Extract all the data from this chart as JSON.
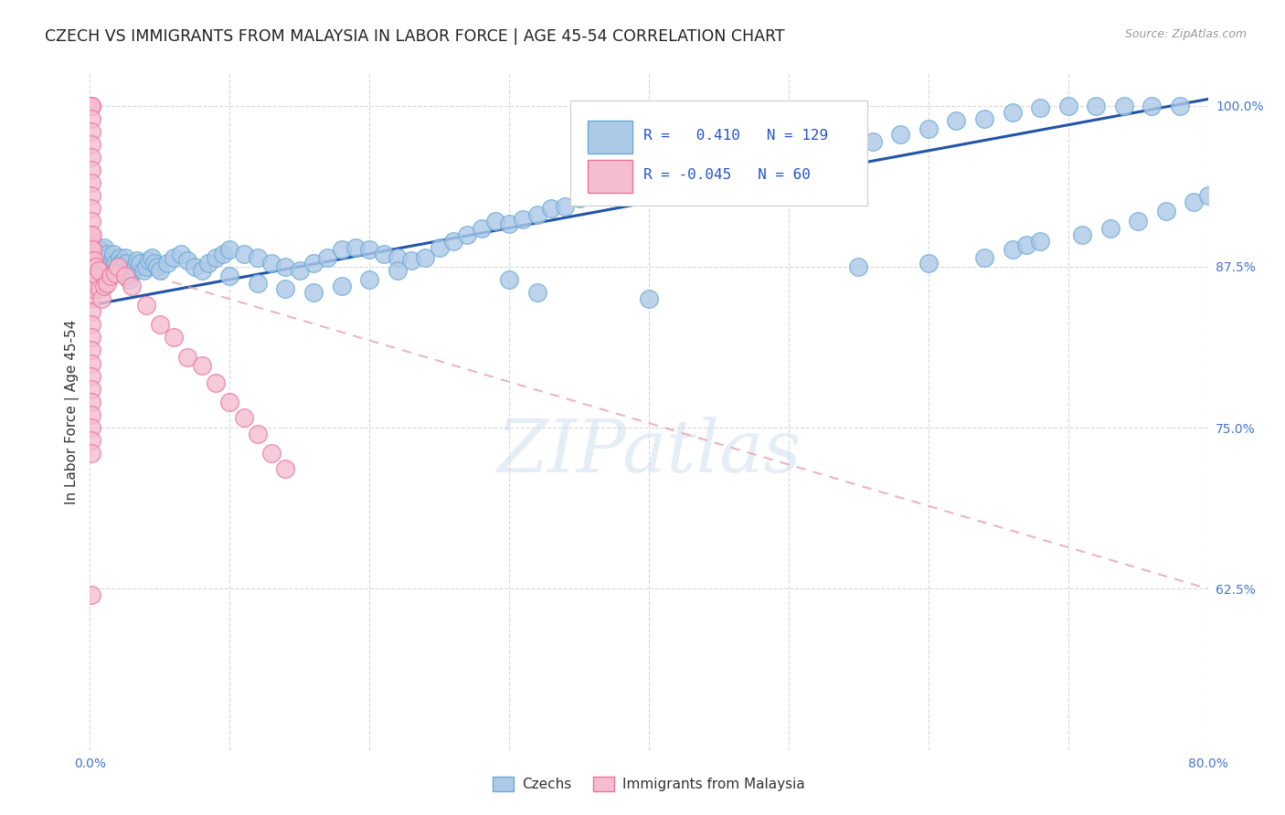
{
  "title": "CZECH VS IMMIGRANTS FROM MALAYSIA IN LABOR FORCE | AGE 45-54 CORRELATION CHART",
  "source": "Source: ZipAtlas.com",
  "ylabel": "In Labor Force | Age 45-54",
  "x_min": 0.0,
  "x_max": 0.8,
  "y_min": 0.5,
  "y_max": 1.025,
  "y_ticks": [
    0.625,
    0.75,
    0.875,
    1.0
  ],
  "y_tick_labels": [
    "62.5%",
    "75.0%",
    "87.5%",
    "100.0%"
  ],
  "x_ticks": [
    0.0,
    0.1,
    0.2,
    0.3,
    0.4,
    0.5,
    0.6,
    0.7,
    0.8
  ],
  "x_tick_labels": [
    "0.0%",
    "",
    "",
    "",
    "",
    "",
    "",
    "",
    "80.0%"
  ],
  "czech_color": "#adc9e8",
  "czech_edge_color": "#6aaad4",
  "malaysia_color": "#f5bdd0",
  "malaysia_edge_color": "#e8759a",
  "trendline_czech_color": "#2255aa",
  "trendline_malaysia_color": "#e89aaa",
  "grid_color": "#d8d8d8",
  "watermark": "ZIPatlas",
  "legend_r_color": "#2255cc",
  "tick_color": "#4477cc",
  "title_color": "#222222",
  "source_color": "#999999",
  "czech_trendline_x": [
    0.0,
    0.8
  ],
  "czech_trendline_y": [
    0.845,
    1.005
  ],
  "malaysia_trendline_x": [
    0.0,
    0.8
  ],
  "malaysia_trendline_y": [
    0.882,
    0.625
  ],
  "czech_x": [
    0.001,
    0.001,
    0.001,
    0.002,
    0.002,
    0.003,
    0.003,
    0.004,
    0.004,
    0.005,
    0.005,
    0.006,
    0.006,
    0.007,
    0.007,
    0.008,
    0.008,
    0.009,
    0.009,
    0.01,
    0.01,
    0.011,
    0.012,
    0.013,
    0.014,
    0.015,
    0.016,
    0.017,
    0.018,
    0.019,
    0.02,
    0.021,
    0.022,
    0.023,
    0.024,
    0.025,
    0.026,
    0.027,
    0.028,
    0.03,
    0.032,
    0.034,
    0.036,
    0.038,
    0.04,
    0.042,
    0.044,
    0.046,
    0.048,
    0.05,
    0.055,
    0.06,
    0.065,
    0.07,
    0.075,
    0.08,
    0.085,
    0.09,
    0.095,
    0.1,
    0.11,
    0.12,
    0.13,
    0.14,
    0.15,
    0.16,
    0.17,
    0.18,
    0.19,
    0.2,
    0.21,
    0.22,
    0.23,
    0.24,
    0.25,
    0.26,
    0.27,
    0.28,
    0.29,
    0.3,
    0.31,
    0.32,
    0.33,
    0.34,
    0.35,
    0.36,
    0.38,
    0.4,
    0.42,
    0.44,
    0.46,
    0.48,
    0.5,
    0.52,
    0.54,
    0.56,
    0.58,
    0.6,
    0.62,
    0.64,
    0.66,
    0.68,
    0.7,
    0.72,
    0.74,
    0.76,
    0.78,
    0.3,
    0.32,
    0.4,
    0.55,
    0.6,
    0.64,
    0.66,
    0.67,
    0.68,
    0.71,
    0.73,
    0.75,
    0.77,
    0.79,
    0.8,
    0.1,
    0.12,
    0.14,
    0.16,
    0.18,
    0.2,
    0.22
  ],
  "czech_y": [
    0.88,
    0.895,
    0.875,
    0.878,
    0.892,
    0.87,
    0.888,
    0.882,
    0.875,
    0.885,
    0.878,
    0.882,
    0.87,
    0.875,
    0.888,
    0.872,
    0.88,
    0.876,
    0.868,
    0.89,
    0.882,
    0.878,
    0.885,
    0.872,
    0.868,
    0.875,
    0.88,
    0.885,
    0.878,
    0.872,
    0.875,
    0.882,
    0.878,
    0.87,
    0.876,
    0.882,
    0.878,
    0.87,
    0.865,
    0.87,
    0.875,
    0.88,
    0.878,
    0.872,
    0.875,
    0.88,
    0.882,
    0.878,
    0.875,
    0.872,
    0.878,
    0.882,
    0.885,
    0.88,
    0.875,
    0.872,
    0.878,
    0.882,
    0.885,
    0.888,
    0.885,
    0.882,
    0.878,
    0.875,
    0.872,
    0.878,
    0.882,
    0.888,
    0.89,
    0.888,
    0.885,
    0.882,
    0.88,
    0.882,
    0.89,
    0.895,
    0.9,
    0.905,
    0.91,
    0.908,
    0.912,
    0.915,
    0.92,
    0.922,
    0.928,
    0.93,
    0.938,
    0.94,
    0.945,
    0.95,
    0.952,
    0.958,
    0.96,
    0.965,
    0.968,
    0.972,
    0.978,
    0.982,
    0.988,
    0.99,
    0.995,
    0.998,
    1.0,
    1.0,
    1.0,
    1.0,
    1.0,
    0.865,
    0.855,
    0.85,
    0.875,
    0.878,
    0.882,
    0.888,
    0.892,
    0.895,
    0.9,
    0.905,
    0.91,
    0.918,
    0.925,
    0.93,
    0.868,
    0.862,
    0.858,
    0.855,
    0.86,
    0.865,
    0.872
  ],
  "malaysia_x": [
    0.001,
    0.001,
    0.001,
    0.001,
    0.001,
    0.001,
    0.001,
    0.001,
    0.001,
    0.001,
    0.001,
    0.001,
    0.001,
    0.001,
    0.001,
    0.001,
    0.001,
    0.001,
    0.001,
    0.001,
    0.002,
    0.002,
    0.002,
    0.002,
    0.003,
    0.003,
    0.004,
    0.005,
    0.006,
    0.007,
    0.008,
    0.01,
    0.012,
    0.015,
    0.018,
    0.02,
    0.025,
    0.03,
    0.04,
    0.05,
    0.06,
    0.07,
    0.08,
    0.09,
    0.1,
    0.11,
    0.12,
    0.13,
    0.14,
    0.001,
    0.001,
    0.001,
    0.001,
    0.001,
    0.001,
    0.001,
    0.001,
    0.001,
    0.001,
    0.001
  ],
  "malaysia_y": [
    1.0,
    1.0,
    1.0,
    0.99,
    0.98,
    0.97,
    0.96,
    0.95,
    0.94,
    0.93,
    0.92,
    0.91,
    0.9,
    0.89,
    0.88,
    0.87,
    0.86,
    0.85,
    0.84,
    0.83,
    0.9,
    0.888,
    0.872,
    0.858,
    0.88,
    0.87,
    0.875,
    0.868,
    0.872,
    0.858,
    0.85,
    0.86,
    0.862,
    0.868,
    0.87,
    0.875,
    0.868,
    0.86,
    0.845,
    0.83,
    0.82,
    0.805,
    0.798,
    0.785,
    0.77,
    0.758,
    0.745,
    0.73,
    0.718,
    0.82,
    0.81,
    0.8,
    0.79,
    0.78,
    0.77,
    0.76,
    0.75,
    0.74,
    0.73,
    0.62
  ]
}
